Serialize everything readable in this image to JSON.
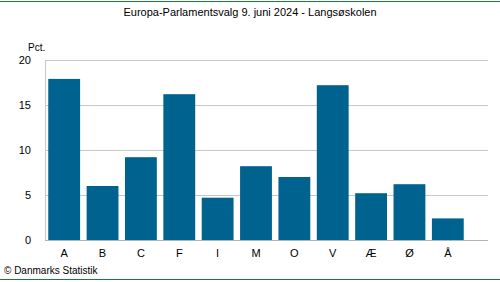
{
  "chart_data": {
    "type": "bar",
    "title": "Europa-Parlamentsvalg 9. juni 2024 - Langsøskolen",
    "ylabel": "Pct.",
    "source": "© Danmarks Statistik",
    "categories": [
      "A",
      "B",
      "C",
      "F",
      "I",
      "M",
      "O",
      "V",
      "Æ",
      "Ø",
      "Å"
    ],
    "values": [
      17.9,
      6.0,
      9.2,
      16.2,
      4.7,
      8.2,
      7.0,
      17.2,
      5.2,
      6.2,
      2.4
    ],
    "color": "#00628f",
    "ylim": [
      0,
      20
    ],
    "yticks": [
      0,
      5,
      10,
      15,
      20
    ],
    "grid": true
  }
}
